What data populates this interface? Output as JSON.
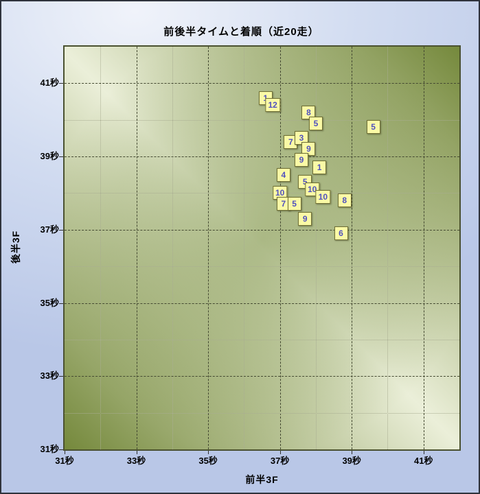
{
  "title": "前後半タイムと着順（近20走）",
  "axes": {
    "x": {
      "label": "前半3F",
      "unit": "秒",
      "min": 31,
      "max": 42,
      "grid_step": 1,
      "labeled_ticks": [
        31,
        33,
        35,
        37,
        39,
        41
      ],
      "tick_labels": [
        "31秒",
        "33秒",
        "35秒",
        "37秒",
        "39秒",
        "41秒"
      ]
    },
    "y": {
      "label": "後半3F",
      "unit": "秒",
      "min": 31,
      "max": 42,
      "grid_step": 1,
      "labeled_ticks": [
        31,
        33,
        35,
        37,
        39,
        41
      ],
      "tick_labels": [
        "31秒",
        "33秒",
        "35秒",
        "37秒",
        "39秒",
        "41秒"
      ]
    }
  },
  "chart_data": {
    "type": "scatter",
    "title": "前後半タイムと着順（近20走）",
    "xlabel": "前半3F",
    "ylabel": "後半3F",
    "xlim": [
      31,
      42
    ],
    "ylim": [
      31,
      42
    ],
    "grid": true,
    "marker_style": "yellow-square-with-finish-position-number",
    "points": [
      {
        "label": "1",
        "x": 36.6,
        "y": 40.6
      },
      {
        "label": "12",
        "x": 36.8,
        "y": 40.4
      },
      {
        "label": "8",
        "x": 37.8,
        "y": 40.2
      },
      {
        "label": "5",
        "x": 38.0,
        "y": 39.9
      },
      {
        "label": "5",
        "x": 39.6,
        "y": 39.8
      },
      {
        "label": "7",
        "x": 37.3,
        "y": 39.4
      },
      {
        "label": "3",
        "x": 37.6,
        "y": 39.5
      },
      {
        "label": "9",
        "x": 37.8,
        "y": 39.2
      },
      {
        "label": "9",
        "x": 37.6,
        "y": 38.9
      },
      {
        "label": "1",
        "x": 38.1,
        "y": 38.7
      },
      {
        "label": "4",
        "x": 37.1,
        "y": 38.5
      },
      {
        "label": "5",
        "x": 37.7,
        "y": 38.3
      },
      {
        "label": "10",
        "x": 37.0,
        "y": 38.0
      },
      {
        "label": "10",
        "x": 37.9,
        "y": 38.1
      },
      {
        "label": "10",
        "x": 38.2,
        "y": 37.9
      },
      {
        "label": "7",
        "x": 37.1,
        "y": 37.7
      },
      {
        "label": "5",
        "x": 37.4,
        "y": 37.7
      },
      {
        "label": "8",
        "x": 38.8,
        "y": 37.8
      },
      {
        "label": "9",
        "x": 37.7,
        "y": 37.3
      },
      {
        "label": "6",
        "x": 38.7,
        "y": 36.9
      }
    ]
  },
  "colors": {
    "canvas_bg_light": "#f0f3fa",
    "canvas_bg_blue": "#b9c7e7",
    "plot_pale": "#ebefd9",
    "plot_dark": "#75893c",
    "grid_major": "#454a32",
    "grid_minor": "#a9ad92",
    "plot_border": "#4a5130",
    "marker_fill": "#fafaa6",
    "marker_border": "#6f6f35",
    "marker_text": "#5151bd",
    "text": "#000000"
  }
}
